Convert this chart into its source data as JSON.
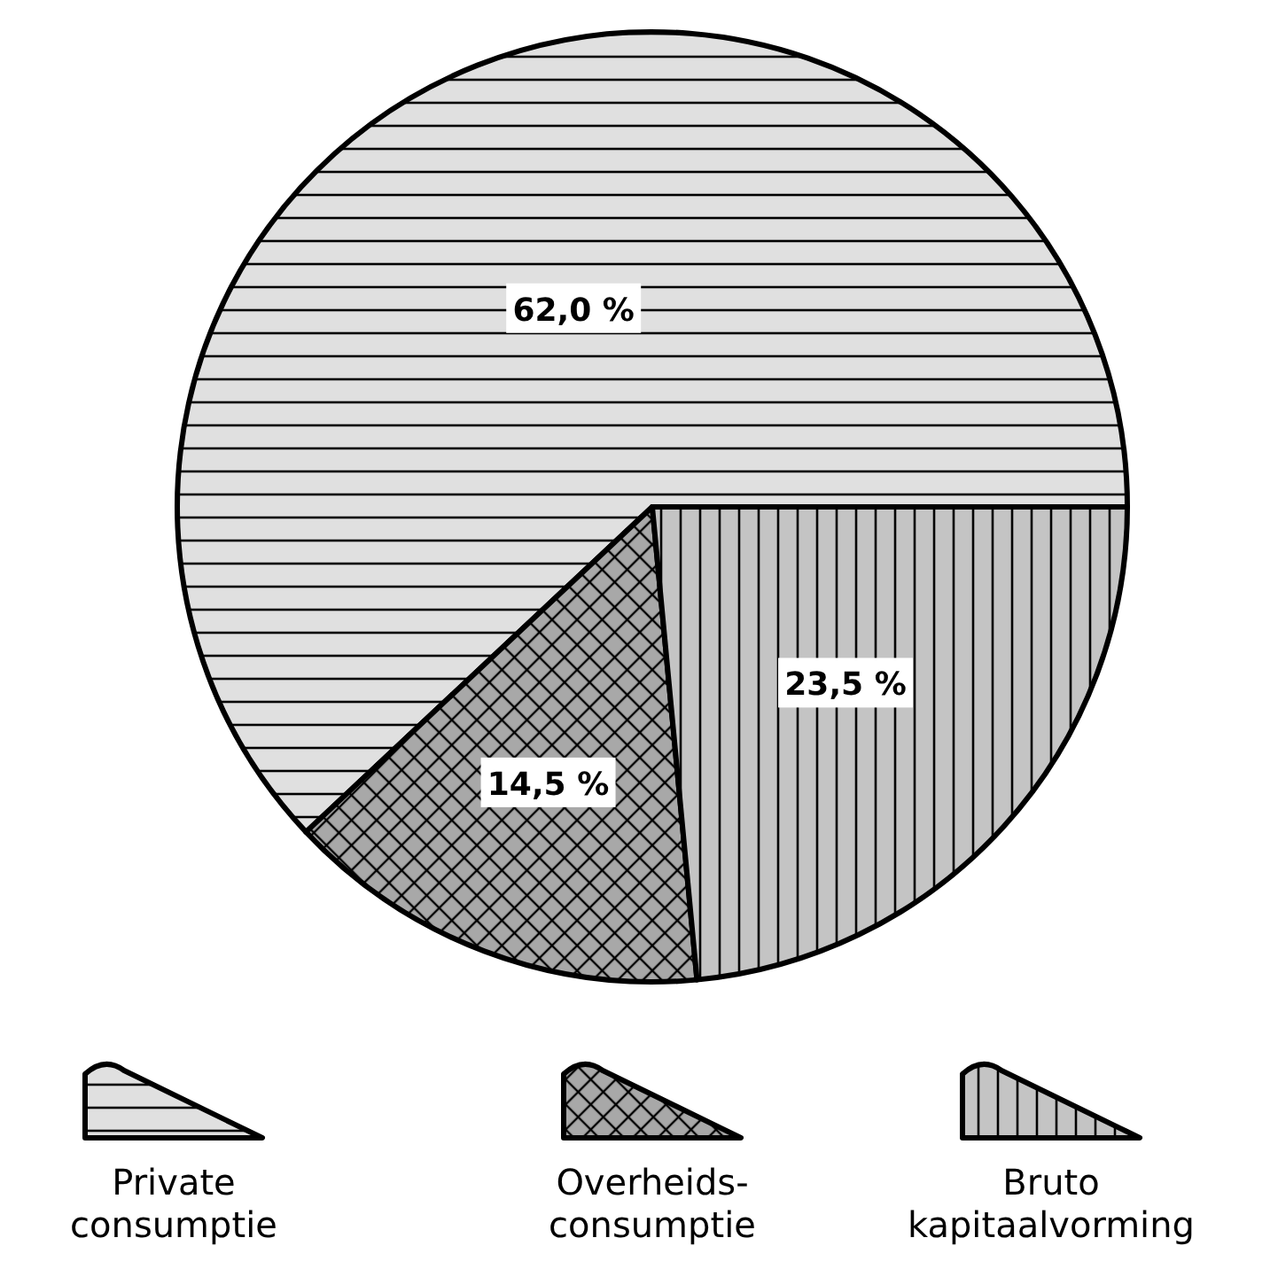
{
  "chart_data": {
    "type": "pie",
    "categories": [
      "Private consumptie",
      "Overheids-consumptie",
      "Bruto kapitaalvorming"
    ],
    "values": [
      62.0,
      14.5,
      23.5
    ],
    "value_labels": [
      "62,0 %",
      "14,5 %",
      "23,5 %"
    ],
    "colors": [
      "#e0e0e0",
      "#a8a8a8",
      "#c4c4c4"
    ],
    "legend": "bottom"
  }
}
